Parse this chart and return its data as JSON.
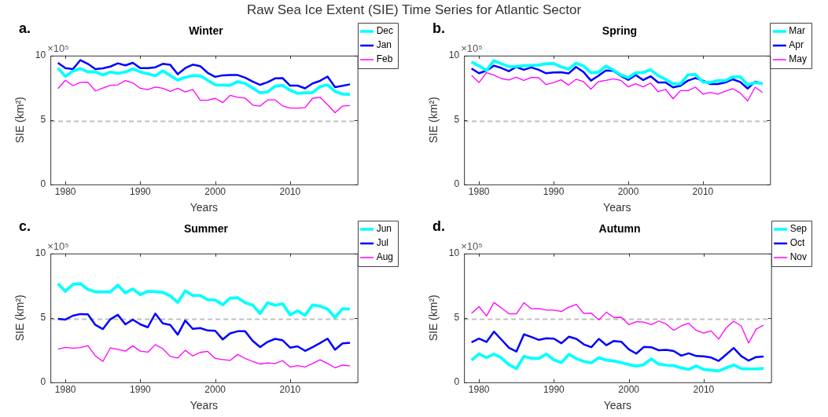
{
  "chart_data": [
    {
      "type": "line",
      "title": "Winter",
      "xlabel": "Years",
      "ylabel": "SIE (km²)",
      "annotations": [
        "a.",
        "×10⁵",
        "Raw Sea Ice Extent (SIE) Time Series for Atlantic Sector"
      ],
      "legend": "top right",
      "xlim": [
        1978,
        2019
      ],
      "xticks": [
        1980,
        1990,
        2000,
        2010
      ],
      "ylim": [
        0,
        10
      ],
      "yticks": [
        0,
        5,
        10
      ],
      "ref_lines": [
        {
          "axis": "y",
          "value": 4.9,
          "color": "#bfbfbf",
          "line_style": "dashed"
        }
      ],
      "x": [
        1979,
        1980,
        1981,
        1982,
        1983,
        1984,
        1985,
        1986,
        1987,
        1988,
        1989,
        1990,
        1991,
        1992,
        1993,
        1994,
        1995,
        1996,
        1997,
        1998,
        1999,
        2000,
        2001,
        2002,
        2003,
        2004,
        2005,
        2006,
        2007,
        2008,
        2009,
        2010,
        2011,
        2012,
        2013,
        2014,
        2015,
        2016,
        2017,
        2018
      ],
      "series": [
        {
          "name": "Dec",
          "color": "#00ffff",
          "values": [
            9.03,
            8.39,
            8.8,
            8.99,
            8.74,
            8.74,
            8.49,
            8.72,
            8.62,
            8.72,
            8.97,
            8.74,
            8.58,
            8.43,
            8.82,
            8.45,
            8.1,
            8.31,
            8.45,
            8.43,
            8.08,
            7.73,
            7.71,
            7.69,
            7.98,
            7.84,
            7.48,
            7.11,
            7.18,
            7.63,
            7.69,
            7.3,
            7.07,
            7.11,
            7.13,
            7.59,
            7.73,
            7.22,
            7.01,
            6.99
          ]
        },
        {
          "name": "Jan",
          "color": "#0000ff",
          "values": [
            9.44,
            9.03,
            8.95,
            9.65,
            9.36,
            8.95,
            9.01,
            9.15,
            9.4,
            9.24,
            9.44,
            9.03,
            9.03,
            9.09,
            9.36,
            9.28,
            8.56,
            9.03,
            9.3,
            9.18,
            8.66,
            8.35,
            8.47,
            8.49,
            8.49,
            8.29,
            7.98,
            7.73,
            7.94,
            8.23,
            8.25,
            7.67,
            7.67,
            7.46,
            7.84,
            8.04,
            8.37,
            7.55,
            7.65,
            7.77
          ]
        },
        {
          "name": "Feb",
          "color": "#ff00ff",
          "values": [
            7.44,
            8.08,
            7.67,
            7.92,
            7.94,
            7.26,
            7.48,
            7.69,
            7.73,
            8.06,
            7.88,
            7.46,
            7.36,
            7.55,
            7.46,
            7.22,
            7.46,
            7.18,
            7.38,
            6.54,
            6.54,
            6.68,
            6.35,
            6.91,
            6.76,
            6.7,
            6.16,
            6.08,
            6.56,
            6.56,
            6.1,
            5.92,
            5.92,
            5.96,
            6.68,
            6.76,
            6.19,
            5.57,
            6.08,
            6.12
          ]
        }
      ]
    },
    {
      "type": "line",
      "title": "Spring",
      "xlabel": "Years",
      "ylabel": "SIE (km²)",
      "annotations": [
        "b.",
        "×10⁵"
      ],
      "legend": "top right",
      "xlim": [
        1978,
        2019
      ],
      "xticks": [
        1980,
        1990,
        2000,
        2010
      ],
      "ylim": [
        0,
        10
      ],
      "yticks": [
        0,
        5,
        10
      ],
      "ref_lines": [
        {
          "axis": "y",
          "value": 4.9,
          "color": "#bfbfbf",
          "line_style": "dashed"
        }
      ],
      "x": [
        1979,
        1980,
        1981,
        1982,
        1983,
        1984,
        1985,
        1986,
        1987,
        1988,
        1989,
        1990,
        1991,
        1992,
        1993,
        1994,
        1995,
        1996,
        1997,
        1998,
        1999,
        2000,
        2001,
        2002,
        2003,
        2004,
        2005,
        2006,
        2007,
        2008,
        2009,
        2010,
        2011,
        2012,
        2013,
        2014,
        2015,
        2016,
        2017,
        2018
      ],
      "series": [
        {
          "name": "Mar",
          "color": "#00ffff",
          "values": [
            9.51,
            9.2,
            8.85,
            9.61,
            9.37,
            9.14,
            9.16,
            9.22,
            9.24,
            9.26,
            9.37,
            9.39,
            9.12,
            8.96,
            9.41,
            9.2,
            8.67,
            8.71,
            9.18,
            8.88,
            8.51,
            8.28,
            8.67,
            8.69,
            8.9,
            8.45,
            8.16,
            7.81,
            7.81,
            8.51,
            8.53,
            7.95,
            7.91,
            8.06,
            8.06,
            8.34,
            8.36,
            7.73,
            7.91,
            7.83
          ]
        },
        {
          "name": "Apr",
          "color": "#0000ff",
          "values": [
            9.0,
            8.63,
            8.83,
            9.22,
            9.04,
            8.79,
            9.12,
            8.9,
            9.08,
            8.9,
            8.63,
            8.69,
            8.71,
            8.61,
            9.12,
            8.73,
            8.06,
            8.43,
            8.85,
            8.81,
            8.43,
            8.12,
            8.49,
            8.1,
            8.4,
            7.91,
            7.91,
            7.53,
            7.65,
            8.06,
            8.26,
            8.06,
            7.79,
            7.79,
            7.91,
            8.16,
            7.95,
            7.44,
            7.98,
            7.83
          ]
        },
        {
          "name": "May",
          "color": "#ff00ff",
          "values": [
            8.47,
            7.91,
            8.67,
            8.49,
            8.22,
            8.1,
            8.32,
            8.08,
            8.3,
            8.28,
            7.75,
            7.91,
            8.12,
            7.71,
            8.16,
            7.98,
            7.4,
            7.98,
            8.08,
            8.2,
            8.08,
            7.57,
            7.81,
            7.57,
            7.87,
            7.2,
            7.38,
            6.65,
            7.28,
            7.28,
            7.55,
            7.01,
            7.14,
            7.01,
            7.24,
            7.44,
            7.1,
            6.48,
            7.55,
            7.14
          ]
        }
      ]
    },
    {
      "type": "line",
      "title": "Summer",
      "xlabel": "Years",
      "ylabel": "SIE (km²)",
      "annotations": [
        "c.",
        "×10⁵"
      ],
      "legend": "top right",
      "xlim": [
        1978,
        2019
      ],
      "xticks": [
        1980,
        1990,
        2000,
        2010
      ],
      "ylim": [
        0,
        10
      ],
      "yticks": [
        0,
        5,
        10
      ],
      "ref_lines": [
        {
          "axis": "y",
          "value": 4.9,
          "color": "#bfbfbf",
          "line_style": "dashed"
        }
      ],
      "x": [
        1979,
        1980,
        1981,
        1982,
        1983,
        1984,
        1985,
        1986,
        1987,
        1988,
        1989,
        1990,
        1991,
        1992,
        1993,
        1994,
        1995,
        1996,
        1997,
        1998,
        1999,
        2000,
        2001,
        2002,
        2003,
        2004,
        2005,
        2006,
        2007,
        2008,
        2009,
        2010,
        2011,
        2012,
        2013,
        2014,
        2015,
        2016,
        2017,
        2018
      ],
      "series": [
        {
          "name": "Jun",
          "color": "#00ffff",
          "values": [
            7.66,
            7.06,
            7.6,
            7.66,
            7.21,
            7.02,
            7.02,
            7.02,
            7.54,
            6.94,
            7.25,
            6.8,
            7.06,
            7.04,
            6.98,
            6.71,
            6.2,
            7.1,
            6.74,
            6.74,
            6.41,
            6.39,
            6.02,
            6.53,
            6.57,
            6.18,
            6.0,
            5.34,
            6.18,
            5.98,
            6.1,
            5.24,
            5.54,
            5.2,
            6.0,
            5.91,
            5.69,
            5.03,
            5.71,
            5.69
          ]
        },
        {
          "name": "Jul",
          "color": "#0000ff",
          "values": [
            4.93,
            4.87,
            5.17,
            5.3,
            5.28,
            4.46,
            4.13,
            4.89,
            5.24,
            4.5,
            4.87,
            4.5,
            4.27,
            5.34,
            4.58,
            4.46,
            3.7,
            4.8,
            4.15,
            4.21,
            4.02,
            4.0,
            3.33,
            3.8,
            3.96,
            3.96,
            3.22,
            2.73,
            3.14,
            3.37,
            3.26,
            2.69,
            2.79,
            2.44,
            2.73,
            3.04,
            3.39,
            2.53,
            3.02,
            3.06
          ]
        },
        {
          "name": "Aug",
          "color": "#ff00ff",
          "values": [
            2.57,
            2.71,
            2.65,
            2.69,
            2.85,
            2.05,
            1.62,
            2.67,
            2.55,
            2.42,
            2.83,
            2.42,
            2.34,
            2.92,
            2.61,
            2.01,
            1.89,
            2.48,
            2.05,
            2.32,
            2.4,
            1.85,
            1.77,
            1.7,
            2.16,
            1.85,
            1.62,
            1.42,
            1.5,
            1.46,
            1.68,
            1.19,
            1.29,
            1.19,
            1.46,
            1.75,
            1.46,
            1.13,
            1.33,
            1.27
          ]
        }
      ]
    },
    {
      "type": "line",
      "title": "Autumn",
      "xlabel": "Years",
      "ylabel": "SIE (km²)",
      "annotations": [
        "d.",
        "×10⁵"
      ],
      "legend": "top right",
      "xlim": [
        1978,
        2019
      ],
      "xticks": [
        1980,
        1990,
        2000,
        2010
      ],
      "ylim": [
        0,
        10
      ],
      "yticks": [
        0,
        5,
        10
      ],
      "ref_lines": [
        {
          "axis": "y",
          "value": 4.9,
          "color": "#bfbfbf",
          "line_style": "dashed"
        }
      ],
      "x": [
        1979,
        1980,
        1981,
        1982,
        1983,
        1984,
        1985,
        1986,
        1987,
        1988,
        1989,
        1990,
        1991,
        1992,
        1993,
        1994,
        1995,
        1996,
        1997,
        1998,
        1999,
        2000,
        2001,
        2002,
        2003,
        2004,
        2005,
        2006,
        2007,
        2008,
        2009,
        2010,
        2011,
        2012,
        2013,
        2014,
        2015,
        2016,
        2017,
        2018
      ],
      "series": [
        {
          "name": "Sep",
          "color": "#00ffff",
          "values": [
            1.72,
            2.21,
            1.92,
            2.19,
            1.88,
            1.37,
            1.06,
            2.02,
            1.86,
            1.86,
            2.19,
            1.74,
            1.53,
            2.17,
            1.84,
            1.62,
            1.51,
            1.9,
            1.72,
            1.66,
            1.53,
            1.37,
            1.25,
            1.37,
            1.82,
            1.41,
            1.33,
            1.29,
            1.12,
            1.0,
            1.27,
            1.0,
            0.94,
            0.88,
            1.12,
            1.35,
            1.06,
            1.04,
            1.04,
            1.08
          ]
        },
        {
          "name": "Oct",
          "color": "#0000ff",
          "values": [
            3.11,
            3.39,
            3.13,
            3.93,
            3.31,
            2.68,
            2.39,
            3.72,
            3.52,
            3.29,
            3.42,
            3.39,
            3.03,
            3.54,
            3.37,
            2.94,
            2.72,
            3.37,
            2.88,
            3.21,
            3.15,
            2.56,
            2.23,
            2.74,
            2.72,
            2.49,
            2.52,
            2.43,
            2.07,
            2.25,
            2.04,
            2.02,
            1.92,
            1.66,
            2.15,
            2.66,
            2.04,
            1.68,
            1.96,
            2.0
          ]
        },
        {
          "name": "Nov",
          "color": "#ff00ff",
          "values": [
            5.36,
            5.87,
            5.15,
            6.2,
            5.77,
            5.32,
            5.32,
            6.18,
            5.71,
            5.73,
            5.6,
            5.6,
            5.5,
            5.83,
            6.05,
            5.34,
            5.36,
            4.85,
            5.44,
            5.03,
            5.05,
            4.48,
            4.7,
            4.68,
            4.48,
            4.76,
            4.52,
            4.03,
            4.38,
            4.58,
            4.03,
            3.82,
            3.99,
            3.35,
            4.23,
            4.74,
            4.38,
            3.05,
            4.13,
            4.44
          ]
        }
      ]
    }
  ]
}
